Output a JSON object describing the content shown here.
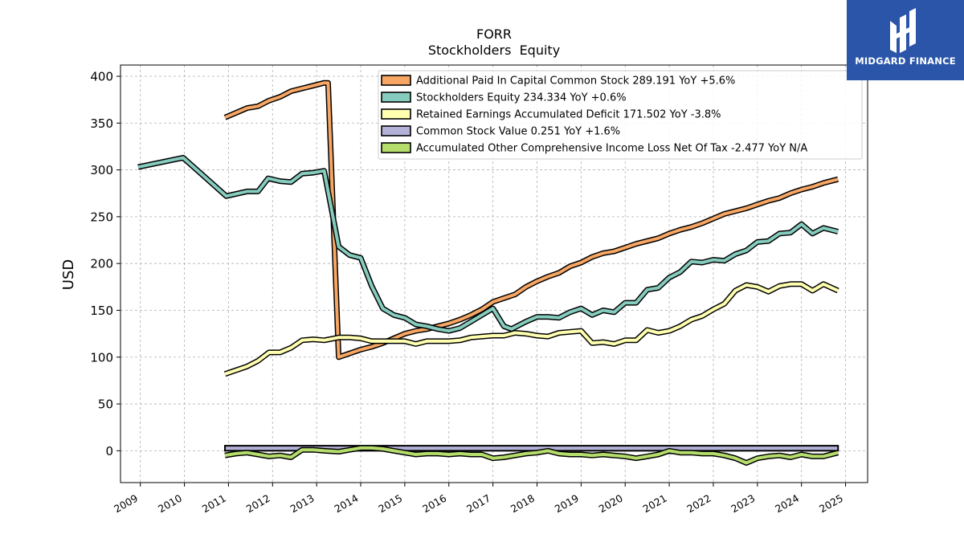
{
  "chart_data": {
    "type": "line",
    "title": "FORR",
    "subtitle": "Stockholders  Equity",
    "xlabel": "",
    "ylabel": "USD",
    "xlim": [
      2008.55,
      2025.5
    ],
    "ylim": [
      -34,
      412
    ],
    "x_ticks": [
      "2009",
      "2010",
      "2011",
      "2012",
      "2013",
      "2014",
      "2015",
      "2016",
      "2017",
      "2018",
      "2019",
      "2020",
      "2021",
      "2022",
      "2023",
      "2024",
      "2025"
    ],
    "y_ticks": [
      "0",
      "50",
      "100",
      "150",
      "200",
      "250",
      "300",
      "350",
      "400"
    ],
    "grid": true,
    "legend_position": "top-right",
    "series": [
      {
        "name": "Additional Paid In Capital Common Stock",
        "legend": "Additional Paid In Capital Common Stock  289.191 YoY +5.6%",
        "color": "#f7a664",
        "points": [
          [
            2010.92,
            356
          ],
          [
            2011.17,
            361
          ],
          [
            2011.42,
            366
          ],
          [
            2011.67,
            368
          ],
          [
            2011.92,
            374
          ],
          [
            2012.17,
            378
          ],
          [
            2012.42,
            384
          ],
          [
            2012.67,
            387
          ],
          [
            2012.92,
            390
          ],
          [
            2013.17,
            393
          ],
          [
            2013.26,
            393
          ],
          [
            2013.5,
            100
          ],
          [
            2013.75,
            104
          ],
          [
            2014.0,
            108
          ],
          [
            2014.25,
            111
          ],
          [
            2014.5,
            115
          ],
          [
            2014.75,
            120
          ],
          [
            2015.0,
            125
          ],
          [
            2015.25,
            128
          ],
          [
            2015.5,
            130
          ],
          [
            2015.75,
            133
          ],
          [
            2016.0,
            136
          ],
          [
            2016.25,
            140
          ],
          [
            2016.5,
            145
          ],
          [
            2016.75,
            151
          ],
          [
            2017.0,
            159
          ],
          [
            2017.25,
            163
          ],
          [
            2017.5,
            167
          ],
          [
            2017.75,
            175
          ],
          [
            2018.0,
            181
          ],
          [
            2018.25,
            186
          ],
          [
            2018.5,
            190
          ],
          [
            2018.75,
            197
          ],
          [
            2019.0,
            201
          ],
          [
            2019.25,
            207
          ],
          [
            2019.5,
            211
          ],
          [
            2019.75,
            213
          ],
          [
            2020.0,
            217
          ],
          [
            2020.25,
            221
          ],
          [
            2020.5,
            224
          ],
          [
            2020.75,
            227
          ],
          [
            2021.0,
            232
          ],
          [
            2021.25,
            236
          ],
          [
            2021.5,
            239
          ],
          [
            2021.75,
            243
          ],
          [
            2022.0,
            248
          ],
          [
            2022.25,
            253
          ],
          [
            2022.5,
            256
          ],
          [
            2022.75,
            259
          ],
          [
            2023.0,
            263
          ],
          [
            2023.25,
            267
          ],
          [
            2023.5,
            270
          ],
          [
            2023.75,
            275
          ],
          [
            2024.0,
            279
          ],
          [
            2024.25,
            282
          ],
          [
            2024.5,
            286
          ],
          [
            2024.83,
            290
          ]
        ]
      },
      {
        "name": "Stockholders Equity",
        "legend": "Stockholders Equity  234.334 YoY +0.6%",
        "color": "#86ccbe",
        "points": [
          [
            2008.95,
            303
          ],
          [
            2009.97,
            313
          ],
          [
            2010.95,
            272
          ],
          [
            2011.42,
            277
          ],
          [
            2011.67,
            277
          ],
          [
            2011.9,
            291
          ],
          [
            2012.17,
            288
          ],
          [
            2012.42,
            287
          ],
          [
            2012.67,
            296
          ],
          [
            2012.92,
            297
          ],
          [
            2013.17,
            299
          ],
          [
            2013.5,
            218
          ],
          [
            2013.75,
            209
          ],
          [
            2014.0,
            206
          ],
          [
            2014.25,
            176
          ],
          [
            2014.5,
            152
          ],
          [
            2014.75,
            145
          ],
          [
            2015.0,
            142
          ],
          [
            2015.25,
            135
          ],
          [
            2015.5,
            133
          ],
          [
            2015.75,
            130
          ],
          [
            2016.0,
            128
          ],
          [
            2016.25,
            131
          ],
          [
            2016.5,
            138
          ],
          [
            2016.75,
            145
          ],
          [
            2017.0,
            152
          ],
          [
            2017.25,
            133
          ],
          [
            2017.42,
            130
          ],
          [
            2017.75,
            138
          ],
          [
            2018.0,
            143
          ],
          [
            2018.25,
            143
          ],
          [
            2018.5,
            142
          ],
          [
            2018.75,
            148
          ],
          [
            2019.0,
            152
          ],
          [
            2019.25,
            145
          ],
          [
            2019.5,
            150
          ],
          [
            2019.75,
            148
          ],
          [
            2020.0,
            158
          ],
          [
            2020.25,
            158
          ],
          [
            2020.5,
            172
          ],
          [
            2020.75,
            174
          ],
          [
            2021.0,
            185
          ],
          [
            2021.25,
            191
          ],
          [
            2021.5,
            202
          ],
          [
            2021.75,
            201
          ],
          [
            2022.0,
            204
          ],
          [
            2022.25,
            203
          ],
          [
            2022.5,
            210
          ],
          [
            2022.75,
            214
          ],
          [
            2023.0,
            223
          ],
          [
            2023.25,
            224
          ],
          [
            2023.5,
            232
          ],
          [
            2023.75,
            233
          ],
          [
            2024.0,
            242
          ],
          [
            2024.25,
            232
          ],
          [
            2024.5,
            238
          ],
          [
            2024.83,
            234
          ]
        ]
      },
      {
        "name": "Retained Earnings Accumulated Deficit",
        "legend": "Retained Earnings Accumulated Deficit  171.502 YoY -3.8%",
        "color": "#ffffb0",
        "points": [
          [
            2010.92,
            82
          ],
          [
            2011.17,
            86
          ],
          [
            2011.42,
            90
          ],
          [
            2011.67,
            96
          ],
          [
            2011.92,
            105
          ],
          [
            2012.17,
            105
          ],
          [
            2012.42,
            110
          ],
          [
            2012.67,
            118
          ],
          [
            2012.92,
            119
          ],
          [
            2013.17,
            118
          ],
          [
            2013.5,
            121
          ],
          [
            2013.75,
            121
          ],
          [
            2014.0,
            120
          ],
          [
            2014.25,
            117
          ],
          [
            2014.5,
            117
          ],
          [
            2014.75,
            117
          ],
          [
            2015.0,
            117
          ],
          [
            2015.25,
            114
          ],
          [
            2015.5,
            117
          ],
          [
            2015.75,
            117
          ],
          [
            2016.0,
            117
          ],
          [
            2016.25,
            118
          ],
          [
            2016.5,
            121
          ],
          [
            2016.75,
            122
          ],
          [
            2017.0,
            123
          ],
          [
            2017.25,
            123
          ],
          [
            2017.5,
            126
          ],
          [
            2017.75,
            125
          ],
          [
            2018.0,
            123
          ],
          [
            2018.25,
            122
          ],
          [
            2018.5,
            126
          ],
          [
            2018.75,
            127
          ],
          [
            2019.0,
            128
          ],
          [
            2019.25,
            115
          ],
          [
            2019.5,
            116
          ],
          [
            2019.75,
            114
          ],
          [
            2020.0,
            118
          ],
          [
            2020.25,
            118
          ],
          [
            2020.5,
            129
          ],
          [
            2020.75,
            126
          ],
          [
            2021.0,
            128
          ],
          [
            2021.25,
            133
          ],
          [
            2021.5,
            140
          ],
          [
            2021.75,
            144
          ],
          [
            2022.0,
            151
          ],
          [
            2022.25,
            157
          ],
          [
            2022.5,
            171
          ],
          [
            2022.75,
            177
          ],
          [
            2023.0,
            175
          ],
          [
            2023.25,
            170
          ],
          [
            2023.5,
            176
          ],
          [
            2023.75,
            178
          ],
          [
            2024.0,
            178
          ],
          [
            2024.25,
            171
          ],
          [
            2024.5,
            178
          ],
          [
            2024.83,
            171
          ]
        ]
      },
      {
        "name": "Common Stock Value",
        "legend": "Common Stock Value  0.251 YoY +1.6%",
        "color": "#b3b1d8",
        "fill": true,
        "points": [
          [
            2010.92,
            0.2
          ],
          [
            2024.83,
            0.25
          ]
        ]
      },
      {
        "name": "Accumulated Other Comprehensive Income Loss Net Of Tax",
        "legend": "Accumulated Other Comprehensive Income Loss Net Of Tax  -2.477 YoY N/A",
        "color": "#b5dd6c",
        "points": [
          [
            2010.92,
            -5
          ],
          [
            2011.17,
            -3
          ],
          [
            2011.42,
            -2
          ],
          [
            2011.67,
            -4
          ],
          [
            2011.92,
            -6
          ],
          [
            2012.17,
            -5
          ],
          [
            2012.42,
            -7
          ],
          [
            2012.67,
            1
          ],
          [
            2012.92,
            1
          ],
          [
            2013.17,
            0
          ],
          [
            2013.5,
            -1
          ],
          [
            2013.75,
            1
          ],
          [
            2014.0,
            3
          ],
          [
            2014.25,
            3
          ],
          [
            2014.5,
            2
          ],
          [
            2014.75,
            0
          ],
          [
            2015.0,
            -2
          ],
          [
            2015.25,
            -4
          ],
          [
            2015.5,
            -3
          ],
          [
            2015.75,
            -3
          ],
          [
            2016.0,
            -4
          ],
          [
            2016.25,
            -3
          ],
          [
            2016.5,
            -4
          ],
          [
            2016.75,
            -4
          ],
          [
            2017.0,
            -8
          ],
          [
            2017.25,
            -7
          ],
          [
            2017.5,
            -5
          ],
          [
            2017.75,
            -3
          ],
          [
            2018.0,
            -2
          ],
          [
            2018.25,
            0
          ],
          [
            2018.5,
            -3
          ],
          [
            2018.75,
            -4
          ],
          [
            2019.0,
            -4
          ],
          [
            2019.25,
            -5
          ],
          [
            2019.5,
            -4
          ],
          [
            2019.75,
            -5
          ],
          [
            2020.0,
            -6
          ],
          [
            2020.25,
            -8
          ],
          [
            2020.5,
            -6
          ],
          [
            2020.75,
            -4
          ],
          [
            2021.0,
            0
          ],
          [
            2021.25,
            -2
          ],
          [
            2021.5,
            -2
          ],
          [
            2021.75,
            -3
          ],
          [
            2022.0,
            -3
          ],
          [
            2022.25,
            -5
          ],
          [
            2022.5,
            -8
          ],
          [
            2022.75,
            -13
          ],
          [
            2023.0,
            -8
          ],
          [
            2023.25,
            -6
          ],
          [
            2023.5,
            -5
          ],
          [
            2023.75,
            -7
          ],
          [
            2024.0,
            -4
          ],
          [
            2024.25,
            -6
          ],
          [
            2024.5,
            -6
          ],
          [
            2024.83,
            -2
          ]
        ]
      }
    ]
  },
  "brand": {
    "name": "MIDGARD FINANCE",
    "background": "#2a55a8"
  }
}
